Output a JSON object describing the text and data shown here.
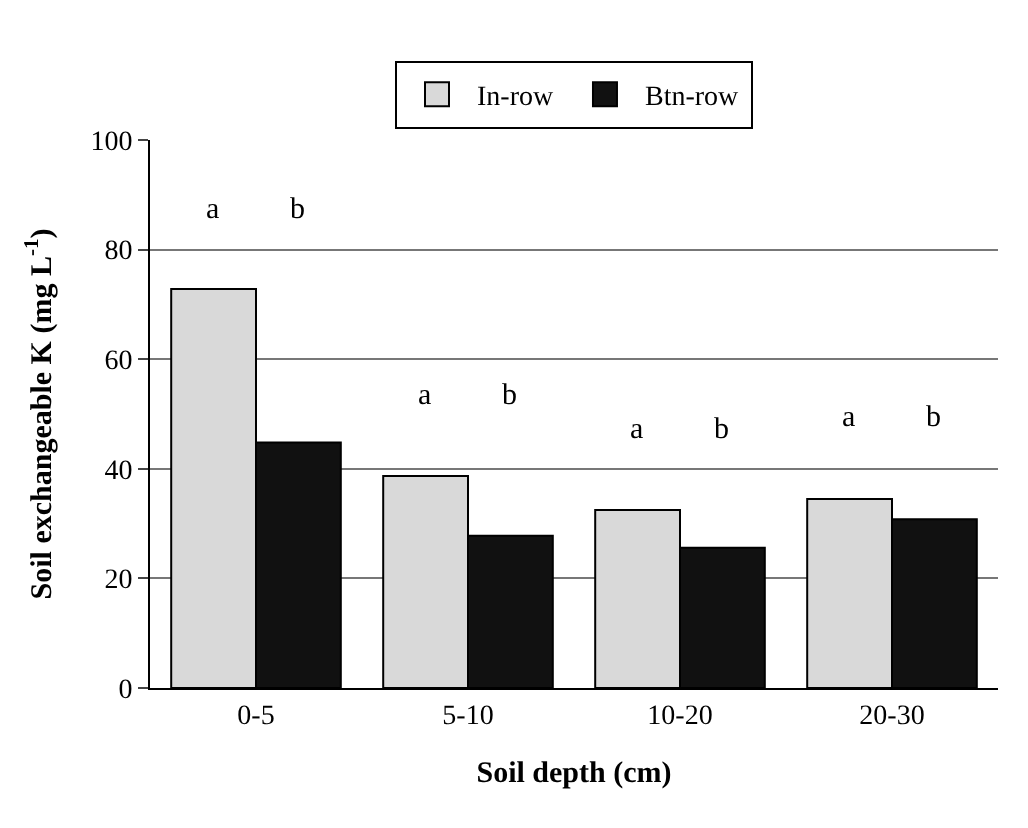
{
  "chart_data": {
    "type": "bar",
    "xlabel": "Soil depth (cm)",
    "ylabel": "Soil exchangeable K (mg L$^{-1}$)",
    "categories": [
      "0-5",
      "5-10",
      "10-20",
      "20-30"
    ],
    "series": [
      {
        "name": "In-row",
        "color": "#d9d9d9",
        "values": [
          72.8,
          38.7,
          32.5,
          34.5
        ]
      },
      {
        "name": "Btn-row",
        "color": "#111111",
        "values": [
          44.8,
          27.8,
          25.6,
          30.8
        ]
      }
    ],
    "ylim": [
      0,
      100
    ],
    "yticks": [
      0,
      20,
      40,
      60,
      80,
      100
    ],
    "grid": "y",
    "legend": "top",
    "annotations": [
      "a",
      "b",
      "a",
      "b",
      "a",
      "b",
      "a",
      "b"
    ]
  }
}
